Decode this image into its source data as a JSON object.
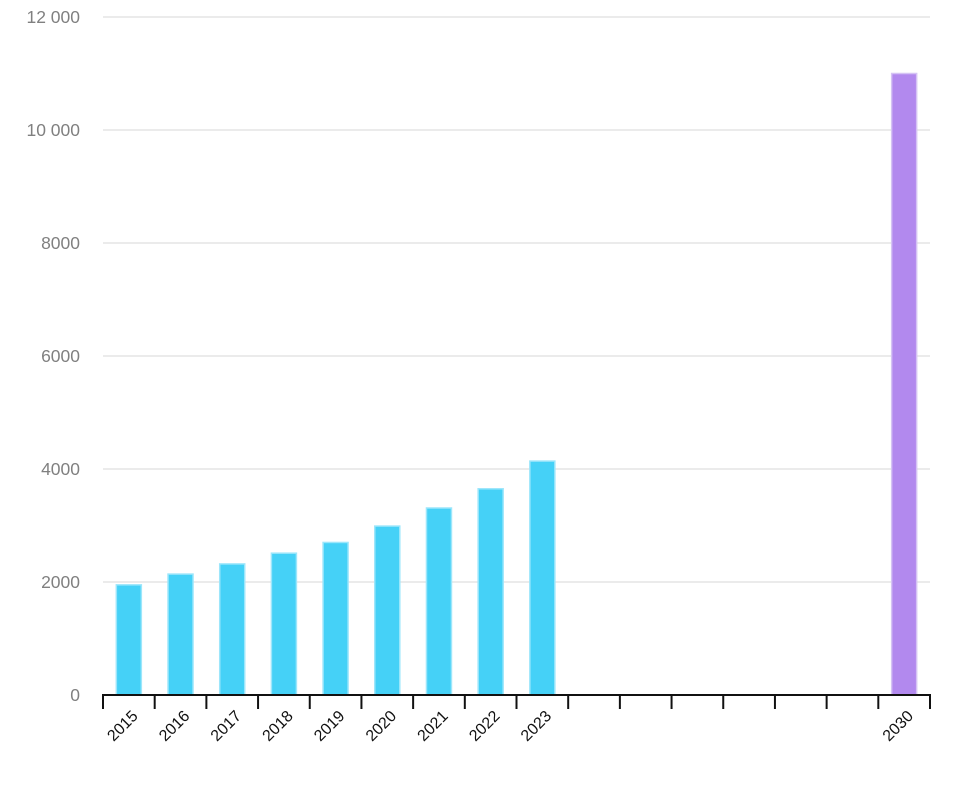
{
  "chart_data": {
    "type": "bar",
    "title": "",
    "xlabel": "",
    "ylabel": "",
    "ylim": [
      0,
      12000
    ],
    "grid": "horizontal",
    "legend_position": "none",
    "y_ticks": [
      {
        "value": 0,
        "label": "0"
      },
      {
        "value": 2000,
        "label": "2000"
      },
      {
        "value": 4000,
        "label": "4000"
      },
      {
        "value": 6000,
        "label": "6000"
      },
      {
        "value": 8000,
        "label": "8000"
      },
      {
        "value": 10000,
        "label": "10 000"
      },
      {
        "value": 12000,
        "label": "12 000"
      }
    ],
    "categories": [
      {
        "label": "2015",
        "value": 1950
      },
      {
        "label": "2016",
        "value": 2140
      },
      {
        "label": "2017",
        "value": 2320
      },
      {
        "label": "2018",
        "value": 2510
      },
      {
        "label": "2019",
        "value": 2700
      },
      {
        "label": "2020",
        "value": 2990
      },
      {
        "label": "2021",
        "value": 3310
      },
      {
        "label": "2022",
        "value": 3650
      },
      {
        "label": "2023",
        "value": 4140
      },
      {
        "label": "",
        "value": null
      },
      {
        "label": "",
        "value": null
      },
      {
        "label": "",
        "value": null
      },
      {
        "label": "",
        "value": null
      },
      {
        "label": "",
        "value": null
      },
      {
        "label": "",
        "value": null
      },
      {
        "label": "2030",
        "value": 11000,
        "highlight": true
      }
    ],
    "colors": {
      "bar_fill": "#45d1f7",
      "bar_stroke": "#9ce6fb",
      "bar_highlight_fill": "#b289ee",
      "bar_highlight_stroke": "#d5c3f4",
      "gridline": "#ebebeb",
      "axis_line": "#111111",
      "y_tick_label": "#808080",
      "x_tick_label": "#111111",
      "background": "#ffffff"
    }
  }
}
